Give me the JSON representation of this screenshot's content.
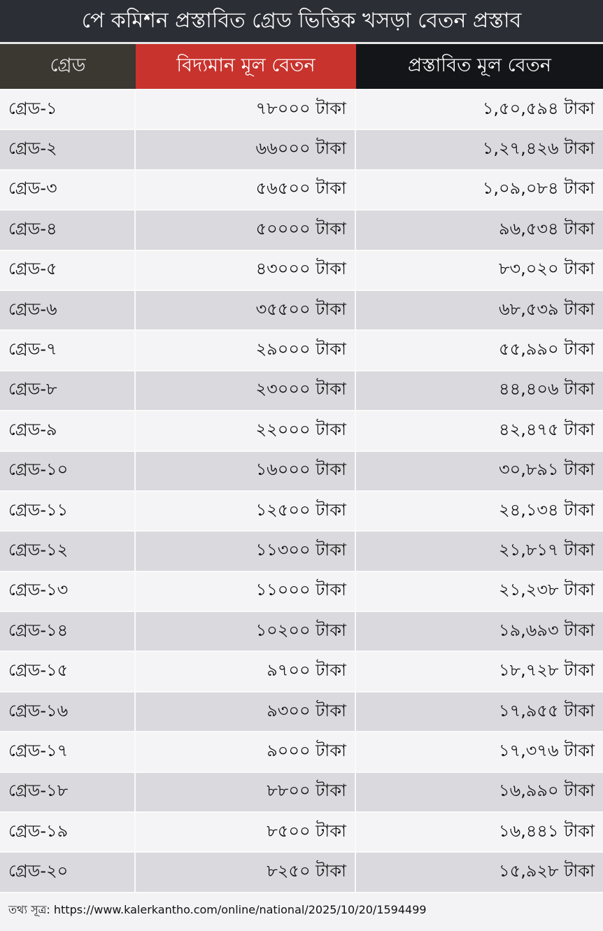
{
  "title": "পে কমিশন প্রস্তাবিত গ্রেড ভিত্তিক খসড়া বেতন প্রস্তাব",
  "headers": [
    "গ্রেড",
    "বিদ্যমান মূল বেতন",
    "প্রস্তাবিত মূল বেতন"
  ],
  "colors": {
    "title_bg": "#2c2e35",
    "grade_header": "#3b3731",
    "current_header": "#c8332d",
    "proposed_header": "#141519"
  },
  "rows": [
    [
      "গ্রেড-১",
      "৭৮০০০ টাকা",
      "১,৫০,৫৯৪ টাকা"
    ],
    [
      "গ্রেড-২",
      "৬৬০০০ টাকা",
      "১,২৭,৪২৬ টাকা"
    ],
    [
      "গ্রেড-৩",
      "৫৬৫০০ টাকা",
      "১,০৯,০৮৪ টাকা"
    ],
    [
      "গ্রেড-৪",
      "৫০০০০ টাকা",
      "৯৬,৫৩৪ টাকা"
    ],
    [
      "গ্রেড-৫",
      "৪৩০০০ টাকা",
      "৮৩,০২০ টাকা"
    ],
    [
      "গ্রেড-৬",
      "৩৫৫০০ টাকা",
      "৬৮,৫৩৯ টাকা"
    ],
    [
      "গ্রেড-৭",
      "২৯০০০ টাকা",
      "৫৫,৯৯০ টাকা"
    ],
    [
      "গ্রেড-৮",
      "২৩০০০ টাকা",
      "৪৪,৪০৬ টাকা"
    ],
    [
      "গ্রেড-৯",
      "২২০০০ টাকা",
      "৪২,৪৭৫  টাকা"
    ],
    [
      "গ্রেড-১০",
      "১৬০০০ টাকা",
      "৩০,৮৯১ টাকা"
    ],
    [
      "গ্রেড-১১",
      "১২৫০০ টাকা",
      "২৪,১৩৪ টাকা"
    ],
    [
      "গ্রেড-১২",
      "১১৩০০ টাকা",
      "২১,৮১৭ টাকা"
    ],
    [
      "গ্রেড-১৩",
      "১১০০০ টাকা",
      "২১,২৩৮ টাকা"
    ],
    [
      "গ্রেড-১৪",
      "১০২০০ টাকা",
      "১৯,৬৯৩ টাকা"
    ],
    [
      "গ্রেড-১৫",
      "৯৭০০ টাকা",
      "১৮,৭২৮ টাকা"
    ],
    [
      "গ্রেড-১৬",
      "৯৩০০ টাকা",
      "১৭,৯৫৫ টাকা"
    ],
    [
      "গ্রেড-১৭",
      "৯০০০ টাকা",
      "১৭,৩৭৬ টাকা"
    ],
    [
      "গ্রেড-১৮",
      "৮৮০০ টাকা",
      "১৬,৯৯০ টাকা"
    ],
    [
      "গ্রেড-১৯",
      "৮৫০০ টাকা",
      "১৬,৪৪১ টাকা"
    ],
    [
      "গ্রেড-২০",
      "৮২৫০ টাকা",
      "১৫,৯২৮ টাকা"
    ]
  ],
  "footer": "তথ্য সূত্র: https://www.kalerkantho.com/online/national/2025/10/20/1594499"
}
